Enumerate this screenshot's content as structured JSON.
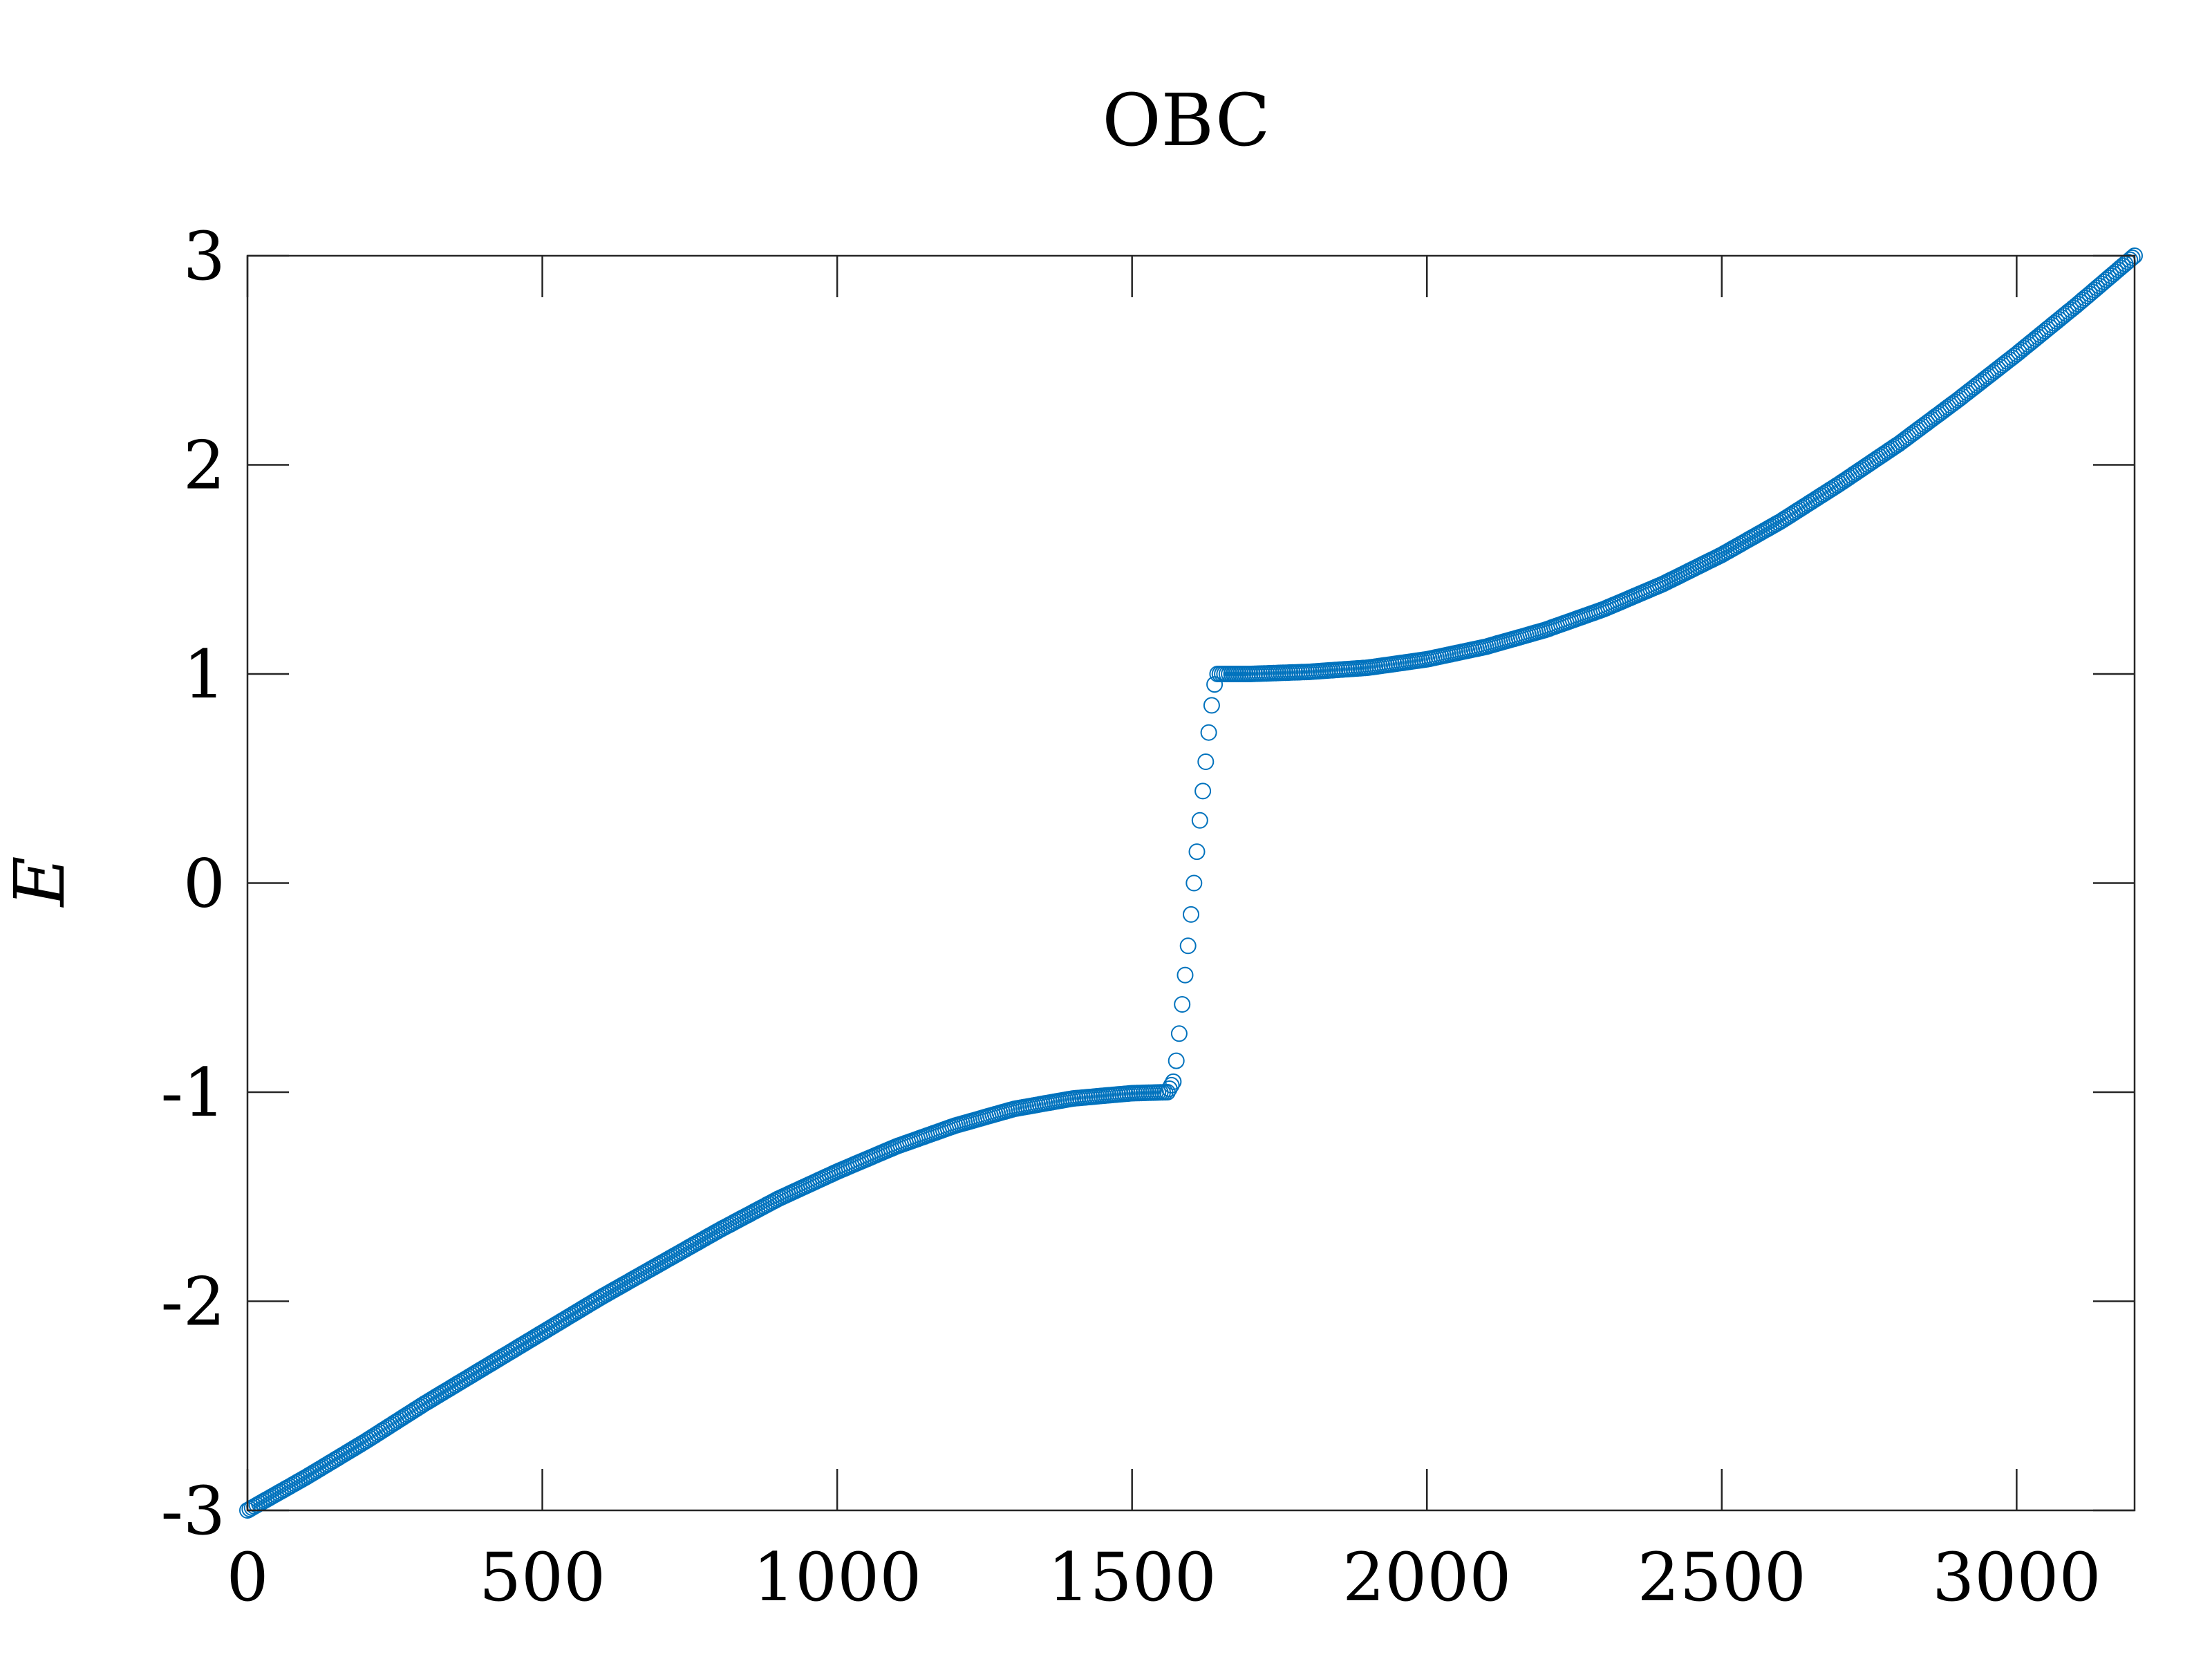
{
  "chart_data": {
    "type": "scatter",
    "title": "OBC",
    "xlabel": "",
    "ylabel": "E",
    "xlim": [
      0,
      3200
    ],
    "ylim": [
      -3,
      3
    ],
    "xticks": [
      0,
      500,
      1000,
      1500,
      2000,
      2500,
      3000
    ],
    "yticks": [
      -3,
      -2,
      -1,
      0,
      1,
      2,
      3
    ],
    "xtick_labels": [
      "0",
      "500",
      "1000",
      "1500",
      "2000",
      "2500",
      "3000"
    ],
    "ytick_labels": [
      "-3",
      "-2",
      "-1",
      "0",
      "1",
      "2",
      "3"
    ],
    "grid": false,
    "marker": "open-circle",
    "color": "#0072BD",
    "series": [
      {
        "points": [
          [
            0,
            -3.0
          ],
          [
            100,
            -2.84
          ],
          [
            200,
            -2.67
          ],
          [
            300,
            -2.49
          ],
          [
            400,
            -2.32
          ],
          [
            500,
            -2.15
          ],
          [
            600,
            -1.98
          ],
          [
            700,
            -1.82
          ],
          [
            800,
            -1.66
          ],
          [
            900,
            -1.51
          ],
          [
            1000,
            -1.38
          ],
          [
            1100,
            -1.26
          ],
          [
            1200,
            -1.16
          ],
          [
            1300,
            -1.08
          ],
          [
            1400,
            -1.03
          ],
          [
            1500,
            -1.005
          ],
          [
            1560,
            -1.0
          ],
          [
            1570,
            -0.95
          ],
          [
            1575,
            -0.85
          ],
          [
            1580,
            -0.72
          ],
          [
            1585,
            -0.58
          ],
          [
            1590,
            -0.44
          ],
          [
            1595,
            -0.3
          ],
          [
            1600,
            -0.15
          ],
          [
            1605,
            0.0
          ],
          [
            1610,
            0.15
          ],
          [
            1615,
            0.3
          ],
          [
            1620,
            0.44
          ],
          [
            1625,
            0.58
          ],
          [
            1630,
            0.72
          ],
          [
            1635,
            0.85
          ],
          [
            1640,
            0.95
          ],
          [
            1645,
            1.0
          ],
          [
            1700,
            1.0
          ],
          [
            1800,
            1.01
          ],
          [
            1900,
            1.03
          ],
          [
            2000,
            1.07
          ],
          [
            2100,
            1.13
          ],
          [
            2200,
            1.21
          ],
          [
            2300,
            1.31
          ],
          [
            2400,
            1.43
          ],
          [
            2500,
            1.57
          ],
          [
            2600,
            1.73
          ],
          [
            2700,
            1.91
          ],
          [
            2800,
            2.1
          ],
          [
            2900,
            2.31
          ],
          [
            3000,
            2.53
          ],
          [
            3100,
            2.76
          ],
          [
            3200,
            3.0
          ]
        ]
      }
    ]
  }
}
